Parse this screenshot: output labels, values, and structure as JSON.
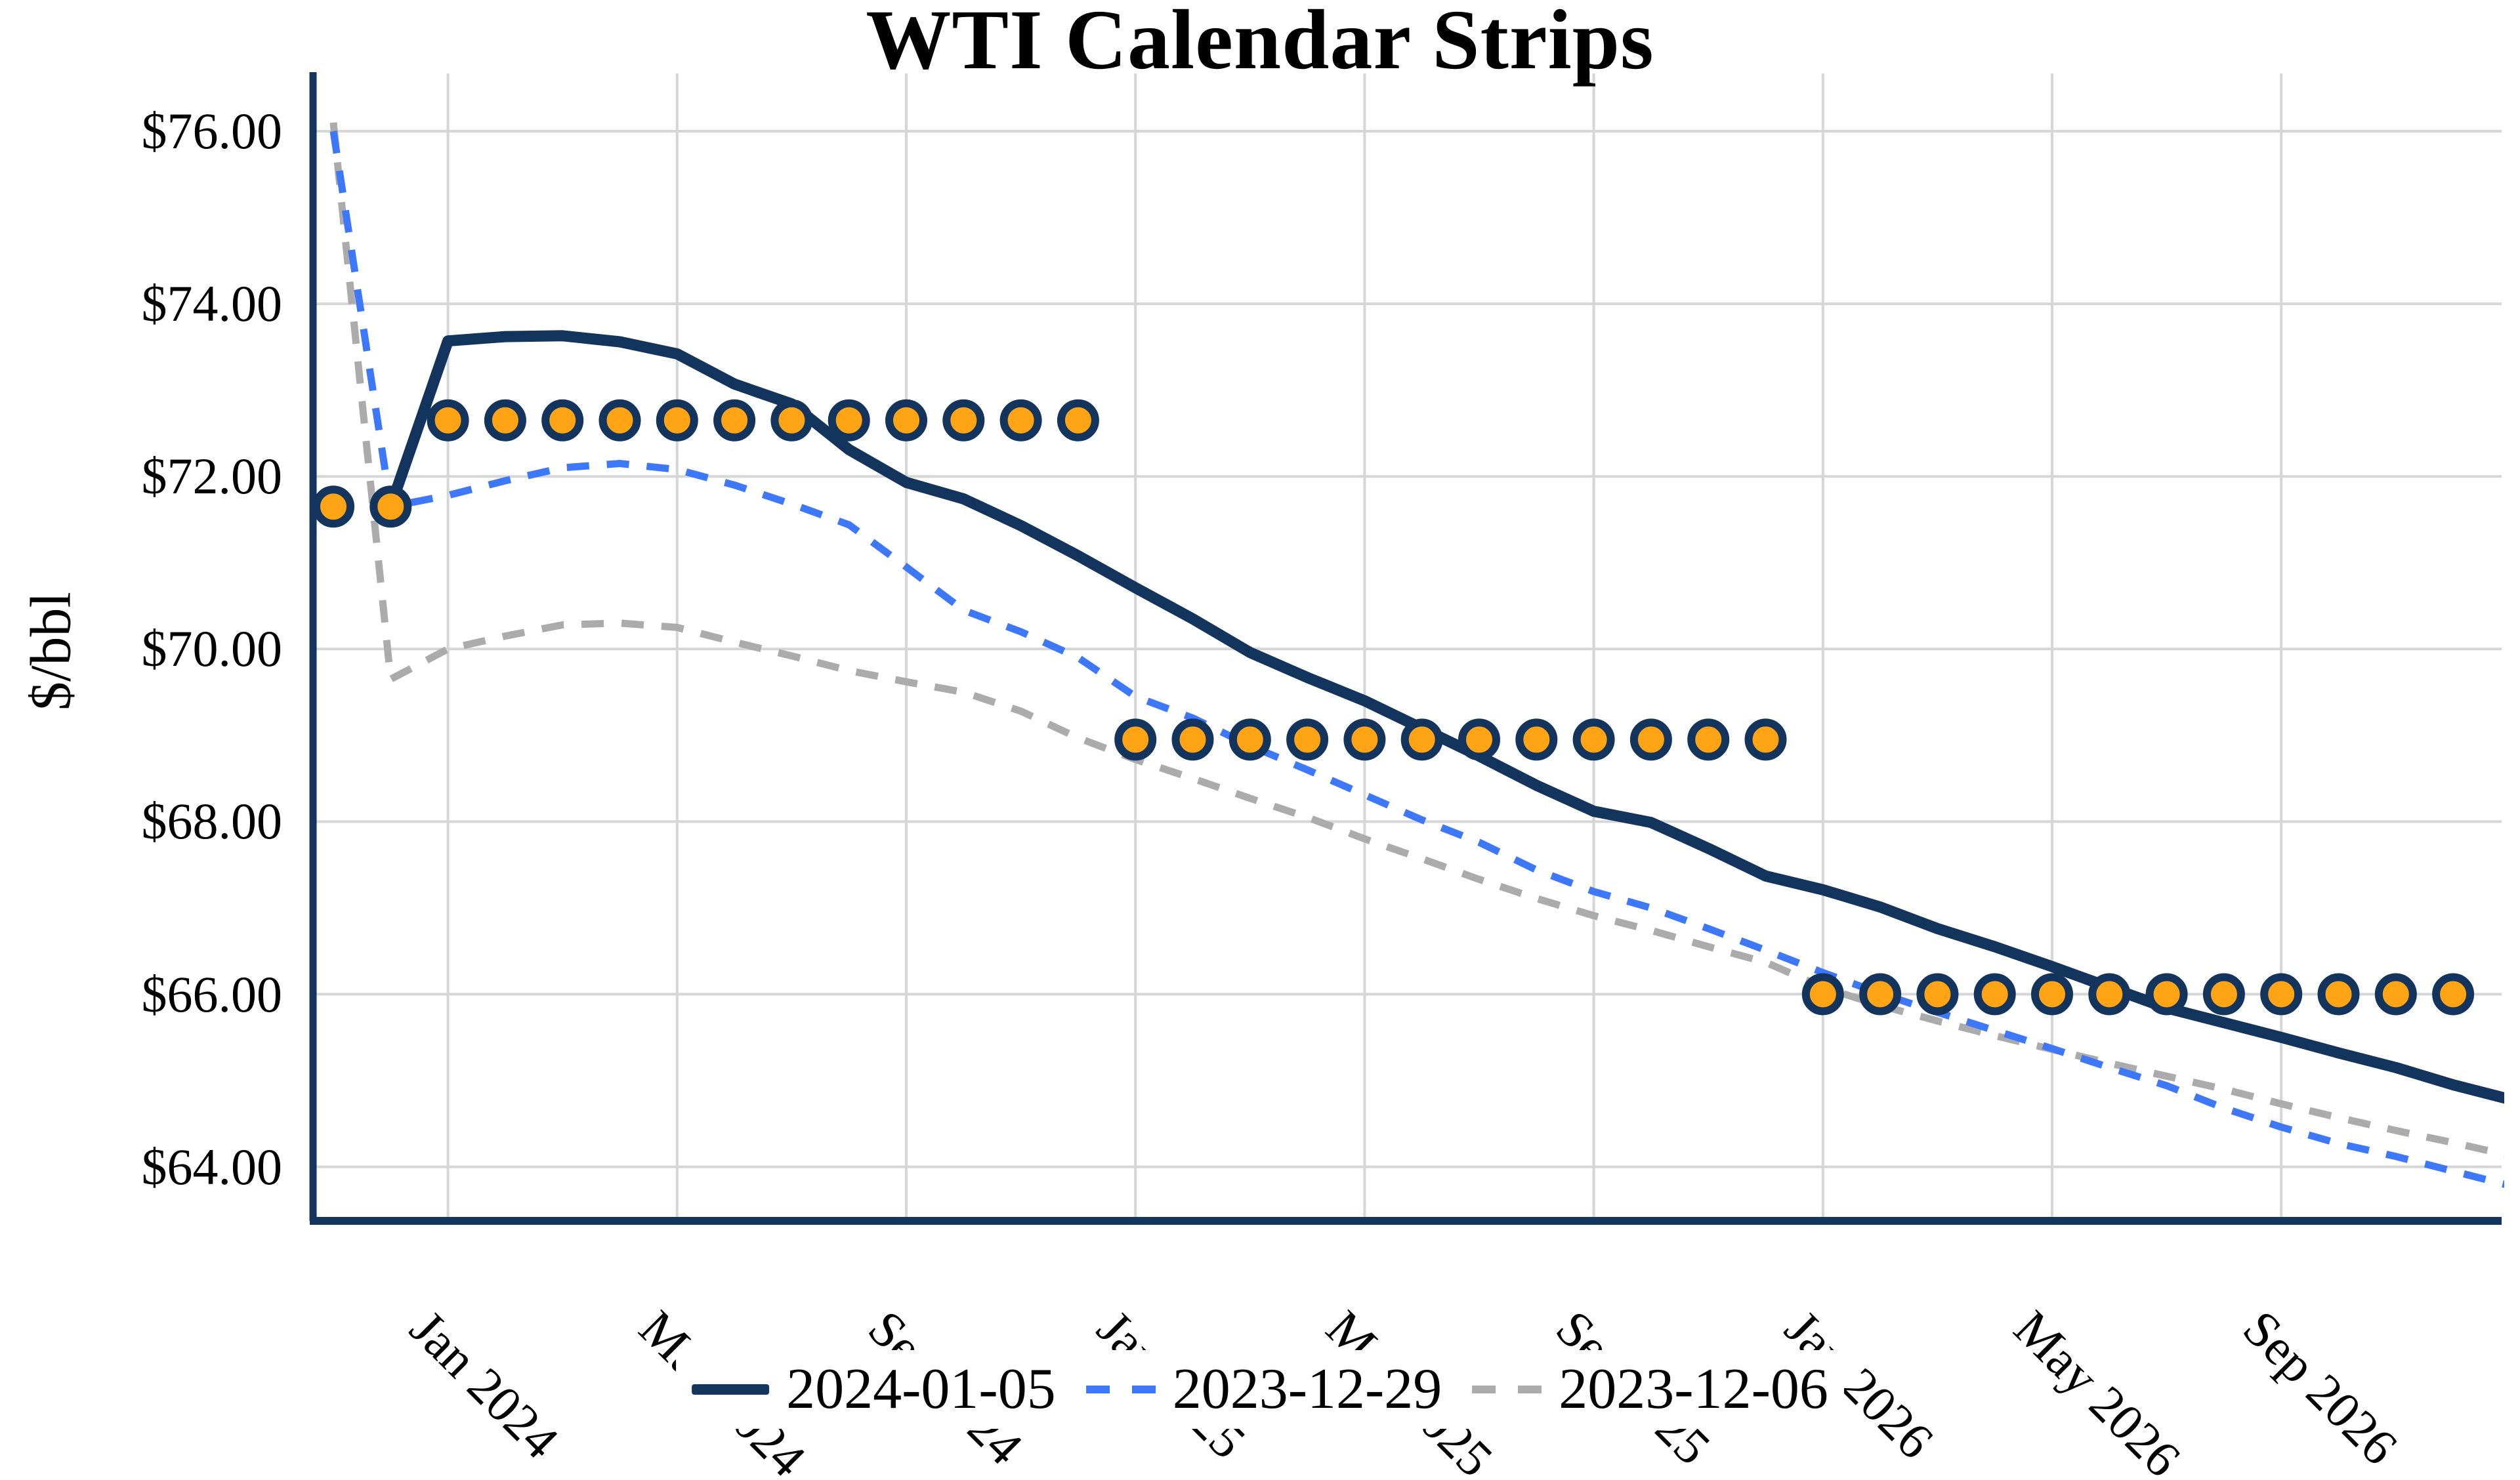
{
  "title": "WTI Calendar Strips",
  "y_axis": {
    "title": "$/bbl"
  },
  "legend": {
    "items": [
      {
        "label": "2024-01-05",
        "color": "#13345C",
        "style": "solid"
      },
      {
        "label": "2023-12-29",
        "color": "#3E78FA",
        "style": "dashed"
      },
      {
        "label": "2023-12-06",
        "color": "#ABABAB",
        "style": "dashed"
      }
    ]
  },
  "colors": {
    "axis": "#13345C",
    "gridline": "#D6D6D6",
    "marker_fill": "#FFA414",
    "marker_outline": "#13345C",
    "background": "#FFFFFF",
    "text": "#000000"
  },
  "chart_data": {
    "type": "line",
    "title": "WTI Calendar Strips",
    "ylabel": "$/bbl",
    "grid": true,
    "legend_position": "bottom-center",
    "ylim": [
      63.3,
      76.7
    ],
    "categories": [
      "Nov 2023",
      "Dec 2023",
      "Jan 2024",
      "Feb 2024",
      "Mar 2024",
      "Apr 2024",
      "May 2024",
      "Jun 2024",
      "Jul 2024",
      "Aug 2024",
      "Sep 2024",
      "Oct 2024",
      "Nov 2024",
      "Dec 2024",
      "Jan 2025",
      "Feb 2025",
      "Mar 2025",
      "Apr 2025",
      "May 2025",
      "Jun 2025",
      "Jul 2025",
      "Aug 2025",
      "Sep 2025",
      "Oct 2025",
      "Nov 2025",
      "Dec 2025",
      "Jan 2026",
      "Feb 2026",
      "Mar 2026",
      "Apr 2026",
      "May 2026",
      "Jun 2026",
      "Jul 2026",
      "Aug 2026",
      "Sep 2026",
      "Oct 2026",
      "Nov 2026",
      "Dec 2026",
      "Jan 2027"
    ],
    "y_ticks": {
      "labels": [
        "$76.00",
        "$74.00",
        "$72.00",
        "$70.00",
        "$68.00",
        "$66.00",
        "$64.00"
      ],
      "values": [
        76,
        74,
        72,
        70,
        68,
        66,
        64
      ]
    },
    "x_ticks": {
      "labels": [
        "Jan 2024",
        "May 2024",
        "Sep 2024",
        "Jan 2025",
        "May 2025",
        "Sep 2025",
        "Jan 2026",
        "May 2026",
        "Sep 2026"
      ],
      "positions": [
        2,
        6,
        10,
        14,
        18,
        22,
        26,
        30,
        34
      ]
    },
    "series": [
      {
        "name": "2023-12-06",
        "color": "#ABABAB",
        "style": "dashed",
        "width": 11,
        "values": [
          76.1,
          69.65,
          70.0,
          70.15,
          70.28,
          70.3,
          70.25,
          70.08,
          69.92,
          69.75,
          69.62,
          69.5,
          69.28,
          68.97,
          68.72,
          68.5,
          68.27,
          68.05,
          67.8,
          67.57,
          67.33,
          67.11,
          66.91,
          66.74,
          66.55,
          66.37,
          66.08,
          65.87,
          65.69,
          65.52,
          65.36,
          65.2,
          65.05,
          64.9,
          64.73,
          64.57,
          64.42,
          64.28,
          64.13
        ]
      },
      {
        "name": "2023-12-29",
        "color": "#3E78FA",
        "style": "dashed",
        "width": 11,
        "values": [
          76.0,
          71.65,
          71.78,
          71.95,
          72.1,
          72.15,
          72.08,
          71.9,
          71.68,
          71.44,
          70.95,
          70.45,
          70.2,
          69.9,
          69.45,
          69.2,
          68.88,
          68.6,
          68.31,
          68.02,
          67.76,
          67.44,
          67.19,
          67.0,
          66.76,
          66.51,
          66.25,
          66.01,
          65.79,
          65.58,
          65.37,
          65.15,
          64.94,
          64.68,
          64.46,
          64.27,
          64.12,
          63.95,
          63.78
        ]
      },
      {
        "name": "2024-01-05",
        "color": "#13345C",
        "style": "solid",
        "width": 17,
        "values": [
          null,
          71.65,
          73.57,
          73.62,
          73.63,
          73.56,
          73.42,
          73.07,
          72.84,
          72.31,
          71.93,
          71.74,
          71.43,
          71.08,
          70.71,
          70.35,
          69.96,
          69.67,
          69.4,
          69.08,
          68.76,
          68.42,
          68.12,
          67.99,
          67.69,
          67.37,
          67.21,
          67.01,
          66.76,
          66.55,
          66.32,
          66.08,
          65.84,
          65.67,
          65.5,
          65.32,
          65.15,
          64.95,
          64.78
        ]
      }
    ],
    "strips": {
      "fill": "#FFA414",
      "stroke": "#13345C",
      "groups": [
        {
          "start_index": 0,
          "count": 2,
          "value": 71.65
        },
        {
          "start_index": 2,
          "count": 12,
          "value": 72.65
        },
        {
          "start_index": 14,
          "count": 12,
          "value": 68.95
        },
        {
          "start_index": 26,
          "count": 12,
          "value": 66.0
        }
      ]
    }
  }
}
